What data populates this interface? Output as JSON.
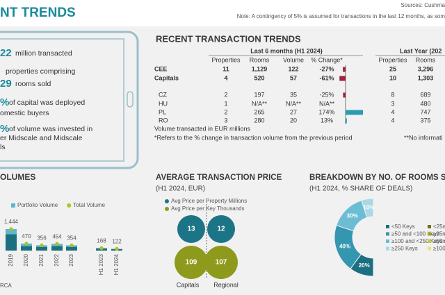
{
  "header": {
    "title": "NT TRENDS",
    "sources": "Sources: Cushma",
    "note": "Note: A contingency of 5% is assumed for transactions in the last 12 months, as som"
  },
  "highlights": [
    {
      "value": "22",
      "text": "million transacted"
    },
    {
      "text": "properties comprising"
    },
    {
      "value": "29",
      "text": "rooms sold"
    },
    {
      "value": "%",
      "lines": [
        "of capital was deployed",
        "omestic buyers"
      ]
    },
    {
      "value": "%",
      "lines": [
        "of volume was invested in",
        "er Midscale and Midscale",
        "ls"
      ]
    }
  ],
  "transactions": {
    "title": "RECENT TRANSACTION TRENDS",
    "period_headers": [
      "Last 6 months (H1 2024)",
      "Last Year (202"
    ],
    "columns": [
      "Properties",
      "Rooms",
      "Volume",
      "% Change*",
      "Properties",
      "Rooms"
    ],
    "rows": [
      [
        "11",
        "1,129",
        "122",
        "25",
        "3,296"
      ],
      [
        "4",
        "520",
        "57",
        "10",
        "1,303"
      ],
      [
        "2",
        "197",
        "35",
        "8",
        "689"
      ],
      [
        "1",
        "N/A**",
        "N/A**",
        "3",
        "480"
      ],
      [
        "2",
        "265",
        "27",
        "4",
        "747"
      ],
      [
        "3",
        "280",
        "20",
        "4",
        "375"
      ]
    ],
    "notes": [
      "Volume transacted in EUR millions",
      "*Refers to the % change in transaction volume from the previous period",
      "**No informati"
    ]
  },
  "cropped_legend": {
    "labels": [
      "<25m",
      "≥25m",
      "≥50m",
      "≥100"
    ],
    "colors": [
      "#6f7414",
      "#9ea51f",
      "#c3ca44",
      "#dfe28c"
    ]
  },
  "chart_data": [
    {
      "type": "bar",
      "orientation": "horizontal",
      "categories": [
        "CEE",
        "Capitals",
        "CZ",
        "HU",
        "PL",
        "RO"
      ],
      "values": [
        -27,
        -61,
        -25,
        null,
        174,
        13
      ],
      "value_labels": [
        "-27%",
        "-61%",
        "-25%",
        "N/A**",
        "174%",
        "13%"
      ],
      "color_negative": "#a3203a",
      "color_positive": "#2a9bb3"
    },
    {
      "type": "bar",
      "stacked": true,
      "title": "OLUMES",
      "source": "RCA",
      "categories": [
        "2019",
        "2020",
        "2021",
        "2022",
        "2023",
        "H1 2023",
        "H1 2024"
      ],
      "series": [
        {
          "color": "#1b6f80",
          "values": [
            1100,
            300,
            250,
            300,
            250,
            140,
            100
          ]
        },
        {
          "name": "Portfolio Volume",
          "color": "#5cb8cc",
          "values": [
            344,
            170,
            106,
            154,
            104,
            28,
            22
          ]
        },
        {
          "name": "Total Volume",
          "type": "scatter",
          "color": "#b5bf1e",
          "values": [
            1444,
            470,
            356,
            454,
            354,
            168,
            122
          ],
          "value_labels": [
            "1,444",
            "470",
            "356",
            "454",
            "354",
            "168",
            "122"
          ]
        }
      ]
    },
    {
      "type": "bubble",
      "title": "AVERAGE TRANSACTION PRICE",
      "subtitle": "(H1 2024, EUR)",
      "categories": [
        "Capitals",
        "Regional"
      ],
      "series": [
        {
          "name": "Avg Price per Property Millions",
          "color": "#1c7487",
          "values": [
            13,
            12
          ]
        },
        {
          "name": "Avg Price per Key Thousands",
          "color": "#8e9a1c",
          "values": [
            109,
            107
          ]
        }
      ]
    },
    {
      "type": "pie",
      "title": "BREAKDOWN BY NO. OF ROOMS SO",
      "subtitle": "(H1 2024, % SHARE OF DEALS)",
      "categories": [
        "<50 Keys",
        "≥50 and <100 Keys",
        "≥100 and <250 Keys",
        "≥250 Keys"
      ],
      "values": [
        20,
        40,
        30,
        10
      ],
      "value_labels": [
        "20%",
        "40%",
        "30%",
        "10%"
      ],
      "colors": [
        "#1c6f82",
        "#3596b0",
        "#6cbdd3",
        "#a9d8e6"
      ]
    }
  ]
}
